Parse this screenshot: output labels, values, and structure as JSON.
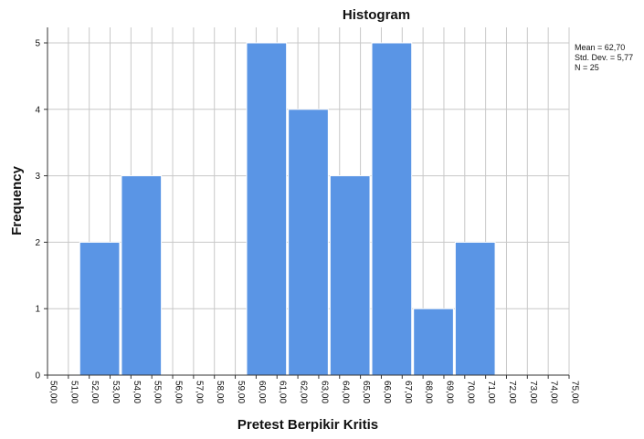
{
  "chart_data": {
    "type": "bar",
    "title": "Histogram",
    "xlabel": "Pretest Berpikir Kritis",
    "ylabel": "Frequency",
    "x_ticks": [
      "50,00",
      "51,00",
      "52,00",
      "53,00",
      "54,00",
      "55,00",
      "56,00",
      "57,00",
      "58,00",
      "59,00",
      "60,00",
      "61,00",
      "62,00",
      "63,00",
      "64,00",
      "65,00",
      "66,00",
      "67,00",
      "68,00",
      "69,00",
      "70,00",
      "71,00",
      "72,00",
      "73,00",
      "74,00",
      "75,00"
    ],
    "x_tick_values": [
      50,
      51,
      52,
      53,
      54,
      55,
      56,
      57,
      58,
      59,
      60,
      61,
      62,
      63,
      64,
      65,
      66,
      67,
      68,
      69,
      70,
      71,
      72,
      73,
      74,
      75
    ],
    "y_ticks": [
      "0",
      "1",
      "2",
      "3",
      "4",
      "5"
    ],
    "y_tick_values": [
      0,
      1,
      2,
      3,
      4,
      5
    ],
    "xlim": [
      50,
      75
    ],
    "ylim": [
      0,
      5
    ],
    "bins": [
      {
        "start": 51.5,
        "end": 53.5,
        "count": 2
      },
      {
        "start": 53.5,
        "end": 55.5,
        "count": 3
      },
      {
        "start": 55.5,
        "end": 57.5,
        "count": 0
      },
      {
        "start": 57.5,
        "end": 59.5,
        "count": 0
      },
      {
        "start": 59.5,
        "end": 61.5,
        "count": 5
      },
      {
        "start": 61.5,
        "end": 63.5,
        "count": 4
      },
      {
        "start": 63.5,
        "end": 65.5,
        "count": 3
      },
      {
        "start": 65.5,
        "end": 67.5,
        "count": 5
      },
      {
        "start": 67.5,
        "end": 69.5,
        "count": 1
      },
      {
        "start": 69.5,
        "end": 71.5,
        "count": 2
      }
    ],
    "stats_lines": [
      "Mean = 62,70",
      "Std. Dev. = 5,77",
      "N = 25"
    ],
    "bar_color": "#5a95e5",
    "grid": true,
    "legend_position": "top-right"
  }
}
